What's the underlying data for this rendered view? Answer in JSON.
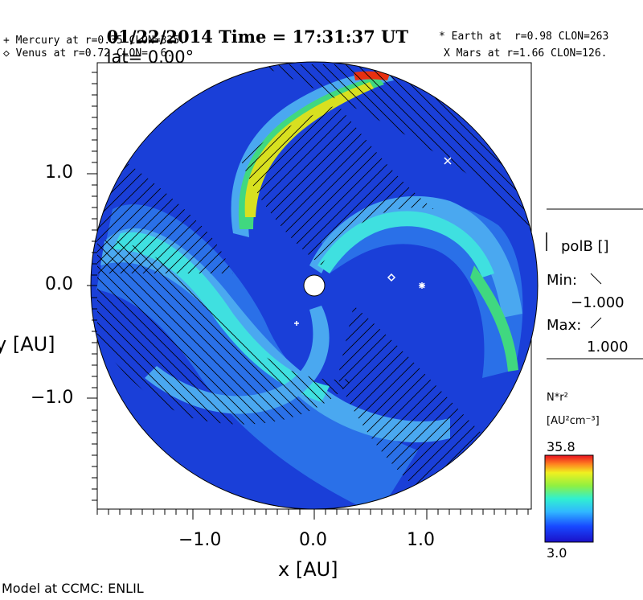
{
  "header": {
    "title": "01/22/2014 Time = 17:31:37 UT",
    "lat": "lat= 0.00°"
  },
  "planets": {
    "mercury": "+ Mercury at r=0.35 CLON=325.",
    "venus": "◇ Venus at r=0.72 CLON=  6.",
    "earth": "* Earth at  r=0.98 CLON=263",
    "mars": "X Mars at r=1.66 CLON=126."
  },
  "axes": {
    "xlabel": "x [AU]",
    "ylabel": "y [AU]",
    "xticks": [
      "−1.0",
      "0.0",
      "1.0"
    ],
    "yticks": [
      "1.0",
      "0.0",
      "−1.0"
    ]
  },
  "legend": {
    "polarity_label": "polB []",
    "min_label": "Min:",
    "min_value": "−1.000",
    "max_label": "Max:",
    "max_value": "1.000",
    "density_label": "N*r²",
    "density_units": "[AU²cm⁻³]",
    "scale_max": "35.8",
    "scale_min": "3.0"
  },
  "footer": {
    "credit": "Model at CCMC: ENLIL"
  },
  "colors": {
    "background_field": "#1a3fd8",
    "arm_fill": "#4aa8f0",
    "arm_core": "#3fe0e0",
    "hot_arm": "#d8e020",
    "peak": "#e83010"
  }
}
